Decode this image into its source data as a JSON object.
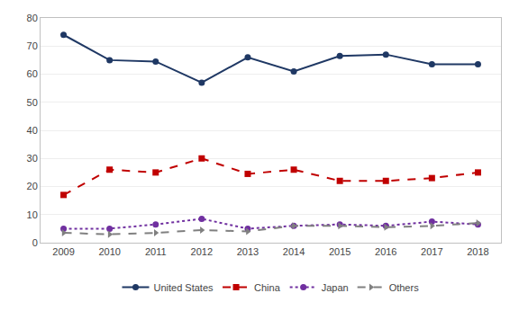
{
  "chart_data": {
    "type": "line",
    "x": [
      2009,
      2010,
      2011,
      2012,
      2013,
      2014,
      2015,
      2016,
      2017,
      2018
    ],
    "series": [
      {
        "name": "United States",
        "color": "#1f3864",
        "marker": "circle",
        "line_style": "solid",
        "values": [
          74,
          65,
          64.5,
          57,
          66,
          61,
          66.5,
          67,
          63.5,
          63.5
        ]
      },
      {
        "name": "China",
        "color": "#c00000",
        "marker": "square",
        "line_style": "dashed",
        "values": [
          17,
          26,
          25,
          30,
          24.5,
          26,
          22,
          22,
          23,
          25
        ]
      },
      {
        "name": "Japan",
        "color": "#7030a0",
        "marker": "circle",
        "line_style": "dotted",
        "values": [
          5,
          5,
          6.5,
          8.5,
          5,
          6,
          6.5,
          6,
          7.5,
          6.5
        ]
      },
      {
        "name": "Others",
        "color": "#808080",
        "marker": "triangle-right",
        "line_style": "dashed",
        "values": [
          3.5,
          3,
          3.5,
          4.5,
          4,
          6,
          6,
          5.5,
          6,
          7
        ]
      }
    ],
    "xlim": [
      2008.5,
      2018.5
    ],
    "xticks": [
      2009,
      2010,
      2011,
      2012,
      2013,
      2014,
      2015,
      2016,
      2017,
      2018
    ],
    "ylim": [
      0,
      80
    ],
    "yticks": [
      0,
      10,
      20,
      30,
      40,
      50,
      60,
      70,
      80
    ],
    "grid": true,
    "legend": "bottom"
  }
}
